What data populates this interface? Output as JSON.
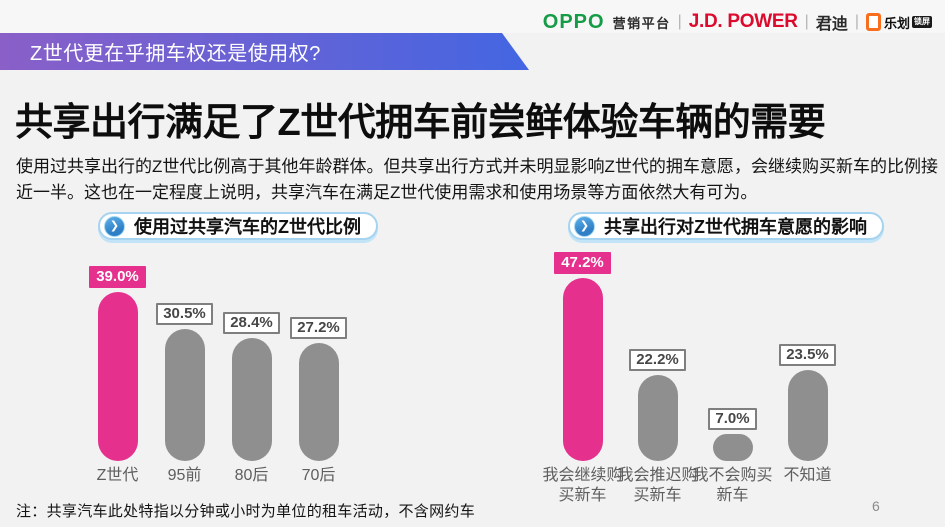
{
  "header": {
    "oppo": "OPPO",
    "oppo_suffix": "营销平台",
    "jdpower": "J.D. POWER",
    "jundi": "君迪",
    "lehua": "乐划",
    "lehua_badge": "锁屏",
    "separator": "|",
    "colors": {
      "oppo_green": "#169C46",
      "jdpower_red": "#DC0A2D",
      "lehua_orange": "#F96E1D"
    }
  },
  "banner": {
    "text": "Z世代更在乎拥车权还是使用权?",
    "gradient_start": "#8A5FC8",
    "gradient_end": "#4366E2"
  },
  "title": "共享出行满足了Z世代拥车前尝鲜体验车辆的需要",
  "intro": "使用过共享出行的Z世代比例高于其他年龄群体。但共享出行方式并未明显影响Z世代的拥车意愿，会继续购买新车的比例接近一半。这也在一定程度上说明，共享汽车在满足Z世代使用需求和使用场景等方面依然大有可为。",
  "icons": {
    "pill_arrow": "❯"
  },
  "chart_data": [
    {
      "type": "bar",
      "title": "使用过共享汽车的Z世代比例",
      "categories": [
        "Z世代",
        "95前",
        "80后",
        "70后"
      ],
      "values": [
        39.0,
        30.5,
        28.4,
        27.2
      ],
      "value_labels": [
        "39.0%",
        "30.5%",
        "28.4%",
        "27.2%"
      ],
      "highlight_index": 0,
      "highlight_color": "#E6308D",
      "bar_color": "#8F8F8F",
      "ylim": [
        0,
        39
      ],
      "grid": false,
      "legend": false
    },
    {
      "type": "bar",
      "title": "共享出行对Z世代拥车意愿的影响",
      "categories": [
        "我会继续购买新车",
        "我会推迟购买新车",
        "我不会购买新车",
        "不知道"
      ],
      "values": [
        47.2,
        22.2,
        7.0,
        23.5
      ],
      "value_labels": [
        "47.2%",
        "22.2%",
        "7.0%",
        "23.5%"
      ],
      "highlight_index": 0,
      "highlight_color": "#E6308D",
      "bar_color": "#8F8F8F",
      "ylim": [
        0,
        47.2
      ],
      "grid": false,
      "legend": false
    }
  ],
  "note": "注：共享汽车此处特指以分钟或小时为单位的租车活动，不含网约车",
  "page_number": "6"
}
